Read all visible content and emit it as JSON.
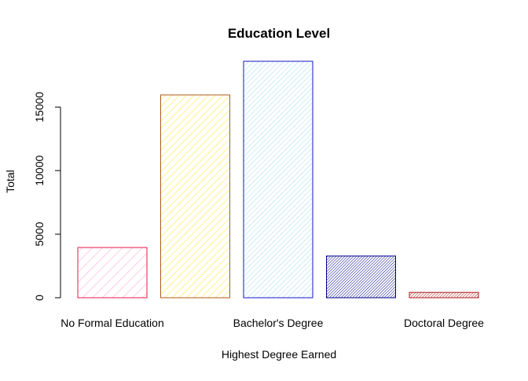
{
  "chart_data": {
    "type": "bar",
    "title": "Education Level",
    "xlabel": "Highest Degree Earned",
    "ylabel": "Total",
    "categories": [
      "No Formal Education",
      "",
      "Bachelor's Degree",
      "",
      "Doctoral Degree"
    ],
    "values": [
      3950,
      15950,
      18600,
      3280,
      420
    ],
    "ylim": [
      0,
      18600
    ],
    "yticks": [
      0,
      5000,
      10000,
      15000
    ],
    "grid": false,
    "bar_styles": [
      {
        "border": "#e8174a",
        "hatch": "#ff9ed0",
        "density": "sparse"
      },
      {
        "border": "#b05a1e",
        "hatch": "#ffe820",
        "density": "medium"
      },
      {
        "border": "#1515c8",
        "hatch": "#9fdde6",
        "density": "dense"
      },
      {
        "border": "#00008b",
        "hatch": "#00008b",
        "density": "very-dense"
      },
      {
        "border": "#b01818",
        "hatch": "#b01818",
        "density": "very-dense"
      }
    ]
  }
}
